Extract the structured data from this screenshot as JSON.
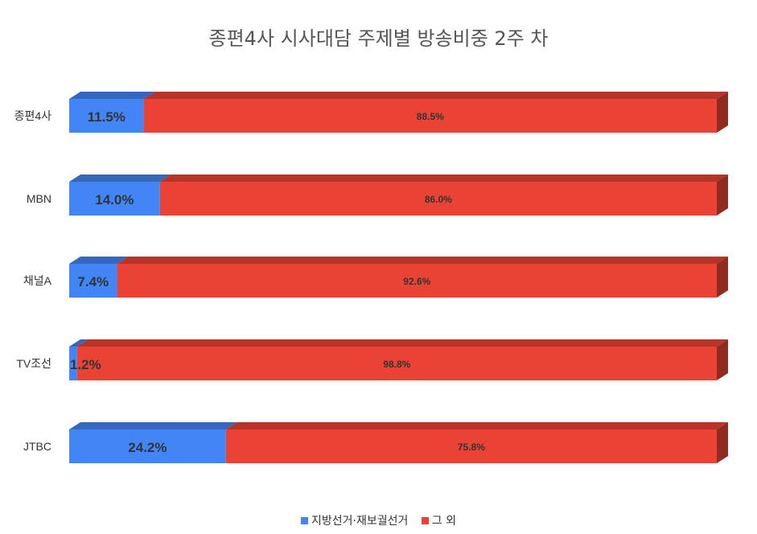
{
  "chart_data": {
    "type": "bar",
    "orientation": "horizontal",
    "stacked": "percent",
    "title": "종편4사 시사대담 주제별 방송비중 2주 차",
    "categories": [
      "종편4사",
      "MBN",
      "채널A",
      "TV조선",
      "JTBC"
    ],
    "series": [
      {
        "name": "지방선거·재보궐선거",
        "color": "#4285f4",
        "values": [
          11.5,
          14.0,
          7.4,
          1.2,
          24.2
        ],
        "labels": [
          "11.5%",
          "14.0%",
          "7.4%",
          "1.2%",
          "24.2%"
        ]
      },
      {
        "name": "그 외",
        "color": "#ea4335",
        "values": [
          88.5,
          86.0,
          92.6,
          98.8,
          75.8
        ],
        "labels": [
          "88.5%",
          "86.0%",
          "92.6%",
          "98.8%",
          "75.8%"
        ]
      }
    ],
    "xlim": [
      0,
      100
    ],
    "grid": false,
    "legend_position": "bottom"
  }
}
